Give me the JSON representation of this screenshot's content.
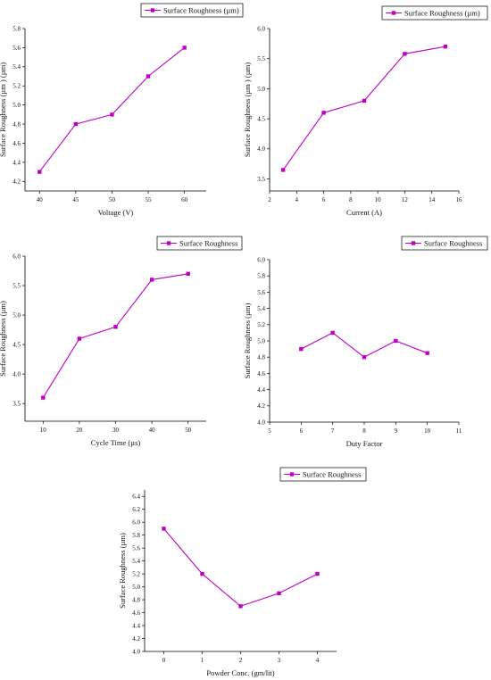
{
  "series_color": "#c000c0",
  "chart_data": [
    {
      "type": "line",
      "legend": "Surface Roughness (µm)",
      "xlabel": "Voltage (V)",
      "ylabel": "Surface Roughness (µm ) (µm)",
      "xlim": [
        38,
        63
      ],
      "ylim": [
        4.1,
        5.8
      ],
      "xticks": [
        40,
        45,
        50,
        55,
        60
      ],
      "yticks": [
        4.2,
        4.4,
        4.6,
        4.8,
        5.0,
        5.2,
        5.4,
        5.6,
        5.8
      ],
      "ytick_decimals": 1,
      "series": [
        {
          "name": "Surface Roughness (µm)",
          "x": [
            40,
            45,
            50,
            55,
            60
          ],
          "y": [
            4.3,
            4.8,
            4.9,
            5.3,
            5.6
          ]
        }
      ]
    },
    {
      "type": "line",
      "legend": "Surface Roughness (µm)",
      "xlabel": "Current (A)",
      "ylabel": "Surface Roughness (µm ) (µm)",
      "xlim": [
        2,
        16
      ],
      "ylim": [
        3.3,
        6.0
      ],
      "xticks": [
        2,
        4,
        6,
        8,
        10,
        12,
        14,
        16
      ],
      "yticks": [
        3.5,
        4.0,
        4.5,
        5.0,
        5.5,
        6.0
      ],
      "ytick_decimals": 1,
      "series": [
        {
          "name": "Surface Roughness (µm)",
          "x": [
            3,
            6,
            9,
            12,
            15
          ],
          "y": [
            3.65,
            4.6,
            4.8,
            5.58,
            5.7
          ]
        }
      ]
    },
    {
      "type": "line",
      "legend": "Surface Roughness",
      "xlabel": "Cycle Time (µs)",
      "ylabel": "Surface Roughness (µm)",
      "xlim": [
        5,
        55
      ],
      "ylim": [
        3.2,
        6.0
      ],
      "xticks": [
        10,
        20,
        30,
        40,
        50
      ],
      "yticks": [
        3.5,
        4.0,
        4.5,
        5.0,
        5.5,
        6.0
      ],
      "ytick_decimals": 1,
      "series": [
        {
          "name": "Surface Roughness",
          "x": [
            10,
            20,
            30,
            40,
            50
          ],
          "y": [
            3.6,
            4.6,
            4.8,
            5.6,
            5.7
          ]
        }
      ]
    },
    {
      "type": "line",
      "legend": "Surface Roughness",
      "xlabel": "Duty Factor",
      "ylabel": "Surface Roughness (µm)",
      "xlim": [
        5,
        11
      ],
      "ylim": [
        4.0,
        6.0
      ],
      "xticks": [
        5,
        6,
        7,
        8,
        9,
        10,
        11
      ],
      "yticks": [
        4.0,
        4.2,
        4.4,
        4.6,
        4.8,
        5.0,
        5.2,
        5.4,
        5.6,
        5.8,
        6.0
      ],
      "ytick_decimals": 1,
      "series": [
        {
          "name": "Surface Roughness",
          "x": [
            6,
            7,
            8,
            9,
            10
          ],
          "y": [
            4.9,
            5.1,
            4.8,
            5.0,
            4.85
          ]
        }
      ]
    },
    {
      "type": "line",
      "legend": "Surface Roughness",
      "xlabel": "Powder Conc. (gm/lit)",
      "ylabel": "Surface Roughness (µm)",
      "xlim": [
        -0.5,
        4.5
      ],
      "ylim": [
        4.0,
        6.5
      ],
      "xticks": [
        0,
        1,
        2,
        3,
        4
      ],
      "yticks": [
        4.0,
        4.2,
        4.4,
        4.6,
        4.8,
        5.0,
        5.2,
        5.4,
        5.6,
        5.8,
        6.0,
        6.2,
        6.4
      ],
      "ytick_decimals": 1,
      "series": [
        {
          "name": "Surface Roughness",
          "x": [
            0,
            1,
            2,
            3,
            4
          ],
          "y": [
            5.9,
            5.2,
            4.7,
            4.9,
            5.2
          ]
        }
      ]
    }
  ]
}
